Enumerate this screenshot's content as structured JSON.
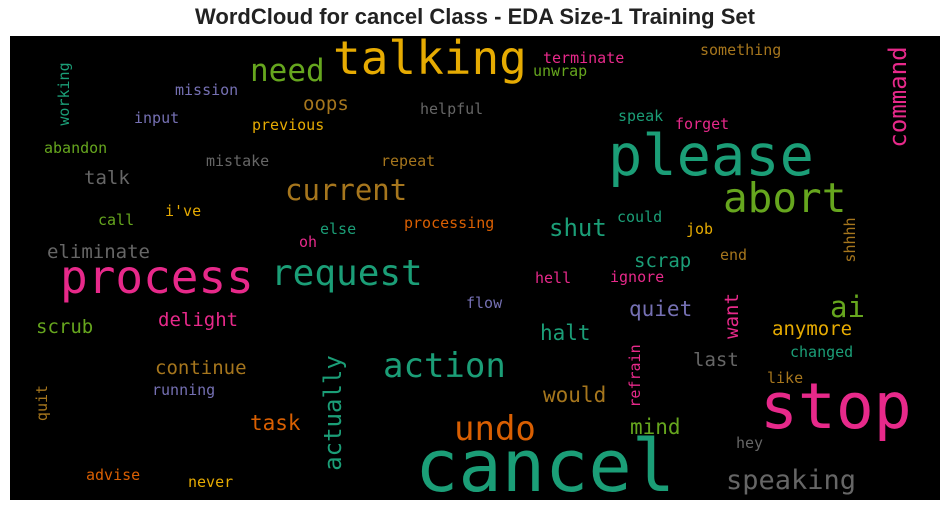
{
  "chart_data": {
    "type": "wordcloud",
    "title": "WordCloud for cancel Class - EDA Size-1 Training Set",
    "background": "#000000",
    "palette": {
      "green": "#1b9e77",
      "orange": "#d95f02",
      "purple": "#7570b3",
      "pink": "#e7298a",
      "lime": "#66a61e",
      "yellow": "#e6ab02",
      "brown": "#a6761d",
      "gray": "#666666"
    },
    "words": [
      {
        "text": "talking",
        "color": "yellow"
      },
      {
        "text": "need",
        "color": "lime"
      },
      {
        "text": "command",
        "color": "pink",
        "orientation": "vertical"
      },
      {
        "text": "terminate",
        "color": "pink"
      },
      {
        "text": "unwrap",
        "color": "lime"
      },
      {
        "text": "something",
        "color": "brown"
      },
      {
        "text": "working",
        "color": "green",
        "orientation": "vertical"
      },
      {
        "text": "mission",
        "color": "purple"
      },
      {
        "text": "oops",
        "color": "brown"
      },
      {
        "text": "helpful",
        "color": "gray"
      },
      {
        "text": "input",
        "color": "purple"
      },
      {
        "text": "previous",
        "color": "yellow"
      },
      {
        "text": "speak",
        "color": "green"
      },
      {
        "text": "forget",
        "color": "pink"
      },
      {
        "text": "abandon",
        "color": "lime"
      },
      {
        "text": "please",
        "color": "green"
      },
      {
        "text": "mistake",
        "color": "gray"
      },
      {
        "text": "repeat",
        "color": "brown"
      },
      {
        "text": "talk",
        "color": "gray"
      },
      {
        "text": "current",
        "color": "brown"
      },
      {
        "text": "abort",
        "color": "lime"
      },
      {
        "text": "call",
        "color": "lime"
      },
      {
        "text": "i've",
        "color": "yellow"
      },
      {
        "text": "processing",
        "color": "orange"
      },
      {
        "text": "could",
        "color": "green"
      },
      {
        "text": "shut",
        "color": "green"
      },
      {
        "text": "else",
        "color": "green"
      },
      {
        "text": "job",
        "color": "yellow"
      },
      {
        "text": "shhhh",
        "color": "brown",
        "orientation": "vertical"
      },
      {
        "text": "eliminate",
        "color": "gray"
      },
      {
        "text": "oh",
        "color": "pink"
      },
      {
        "text": "end",
        "color": "brown"
      },
      {
        "text": "process",
        "color": "pink"
      },
      {
        "text": "request",
        "color": "green"
      },
      {
        "text": "scrap",
        "color": "green"
      },
      {
        "text": "hell",
        "color": "pink"
      },
      {
        "text": "ignore",
        "color": "pink"
      },
      {
        "text": "ai",
        "color": "lime"
      },
      {
        "text": "flow",
        "color": "purple"
      },
      {
        "text": "quiet",
        "color": "purple"
      },
      {
        "text": "scrub",
        "color": "lime"
      },
      {
        "text": "delight",
        "color": "pink"
      },
      {
        "text": "want",
        "color": "pink",
        "orientation": "vertical"
      },
      {
        "text": "anymore",
        "color": "yellow"
      },
      {
        "text": "halt",
        "color": "green"
      },
      {
        "text": "refrain",
        "color": "pink",
        "orientation": "vertical"
      },
      {
        "text": "changed",
        "color": "green"
      },
      {
        "text": "action",
        "color": "green"
      },
      {
        "text": "continue",
        "color": "brown"
      },
      {
        "text": "last",
        "color": "gray"
      },
      {
        "text": "running",
        "color": "purple"
      },
      {
        "text": "actually",
        "color": "green",
        "orientation": "vertical"
      },
      {
        "text": "like",
        "color": "brown"
      },
      {
        "text": "quit",
        "color": "brown",
        "orientation": "vertical"
      },
      {
        "text": "stop",
        "color": "pink"
      },
      {
        "text": "would",
        "color": "brown"
      },
      {
        "text": "task",
        "color": "orange"
      },
      {
        "text": "undo",
        "color": "orange"
      },
      {
        "text": "mind",
        "color": "lime"
      },
      {
        "text": "hey",
        "color": "gray"
      },
      {
        "text": "cancel",
        "color": "green"
      },
      {
        "text": "advise",
        "color": "orange"
      },
      {
        "text": "never",
        "color": "yellow"
      },
      {
        "text": "speaking",
        "color": "gray"
      }
    ]
  }
}
